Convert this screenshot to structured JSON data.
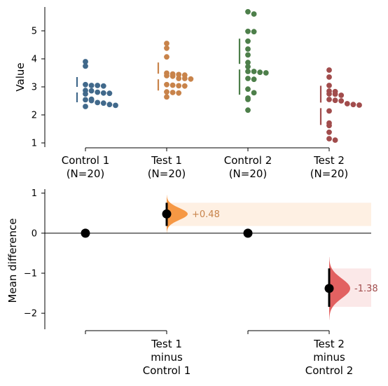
{
  "chart_data": [
    {
      "type": "scatter",
      "subtype": "swarm",
      "ylabel": "Value",
      "ylim": [
        0.85,
        5.85
      ],
      "yticks": [
        1,
        2,
        3,
        4,
        5
      ],
      "categories": [
        "Control 1\n(N=20)",
        "Test 1\n(N=20)",
        "Control 2\n(N=20)",
        "Test 2\n(N=20)"
      ],
      "series": [
        {
          "name": "Control 1",
          "n": 20,
          "color": "#41698b",
          "mean": 2.9,
          "sd": 0.45,
          "values": [
            3.9,
            3.74,
            3.08,
            3.05,
            3.05,
            3.03,
            2.87,
            2.86,
            2.81,
            2.78,
            2.77,
            2.75,
            2.56,
            2.54,
            2.51,
            2.44,
            2.42,
            2.37,
            2.34,
            2.3
          ]
        },
        {
          "name": "Test 1",
          "n": 20,
          "color": "#c8834a",
          "mean": 3.37,
          "sd": 0.5,
          "values": [
            4.55,
            4.38,
            4.07,
            3.49,
            3.46,
            3.44,
            3.42,
            3.4,
            3.38,
            3.3,
            3.3,
            3.28,
            3.08,
            3.06,
            3.04,
            3.03,
            2.82,
            2.8,
            2.78,
            2.64
          ]
        },
        {
          "name": "Control 2",
          "n": 20,
          "color": "#4d7f4a",
          "mean": 3.72,
          "sd": 1.0,
          "values": [
            5.68,
            5.6,
            4.98,
            4.97,
            4.63,
            4.35,
            4.14,
            3.87,
            3.72,
            3.55,
            3.55,
            3.52,
            3.5,
            3.3,
            3.27,
            2.92,
            2.79,
            2.6,
            2.55,
            2.17
          ]
        },
        {
          "name": "Test 2",
          "n": 20,
          "color": "#a14c4c",
          "mean": 2.34,
          "sd": 0.7,
          "values": [
            3.6,
            3.35,
            3.05,
            2.85,
            2.83,
            2.75,
            2.74,
            2.7,
            2.55,
            2.52,
            2.5,
            2.4,
            2.37,
            2.35,
            2.14,
            1.71,
            1.62,
            1.38,
            1.15,
            1.1
          ]
        }
      ],
      "legend": "none",
      "grid": false
    },
    {
      "type": "scatter",
      "subtype": "mean-difference",
      "ylabel": "Mean difference",
      "ylim": [
        -2.4,
        1.1
      ],
      "yticks": [
        -2,
        -1,
        0,
        1
      ],
      "categories": [
        "Test 1\nminus\nControl 1",
        "Test 2\nminus\nControl 2"
      ],
      "comparisons": [
        {
          "control_mean": 0,
          "mean_diff": 0.48,
          "ci": [
            0.18,
            0.76
          ],
          "label": "+0.48",
          "color": "#f6923b",
          "label_color": "#c8834a"
        },
        {
          "control_mean": 0,
          "mean_diff": -1.38,
          "ci": [
            -1.84,
            -0.88
          ],
          "label": "-1.38",
          "color": "#e05a5a",
          "label_color": "#a14c4c"
        }
      ],
      "legend": "none",
      "grid": false
    }
  ]
}
